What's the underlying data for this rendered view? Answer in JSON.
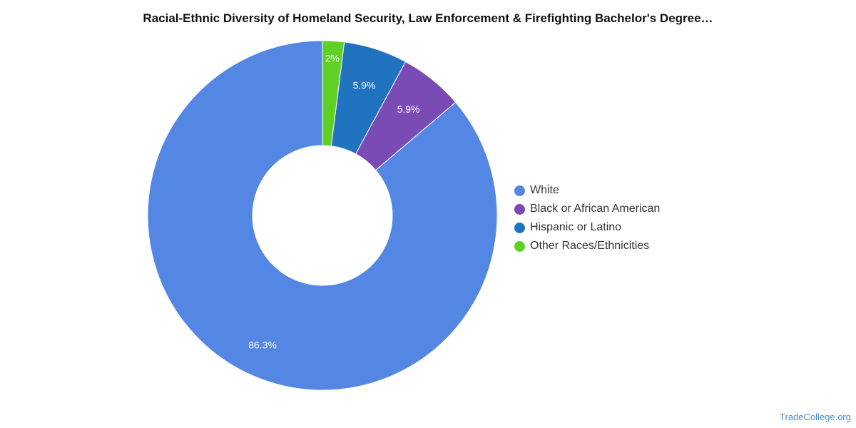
{
  "chart_data": {
    "type": "pie",
    "variant": "donut",
    "title": "Racial-Ethnic Diversity of Homeland Security, Law Enforcement & Firefighting Bachelor's Degree…",
    "categories": [
      "White",
      "Black or African American",
      "Hispanic or Latino",
      "Other Races/Ethnicities"
    ],
    "values": [
      86.3,
      5.9,
      5.9,
      2
    ],
    "labels": [
      "86.3%",
      "5.9%",
      "5.9%",
      "2%"
    ],
    "colors": [
      "#5486e3",
      "#7b4bb5",
      "#2273bf",
      "#5fd126"
    ],
    "legend_position": "right"
  },
  "source": "TradeCollege.org"
}
